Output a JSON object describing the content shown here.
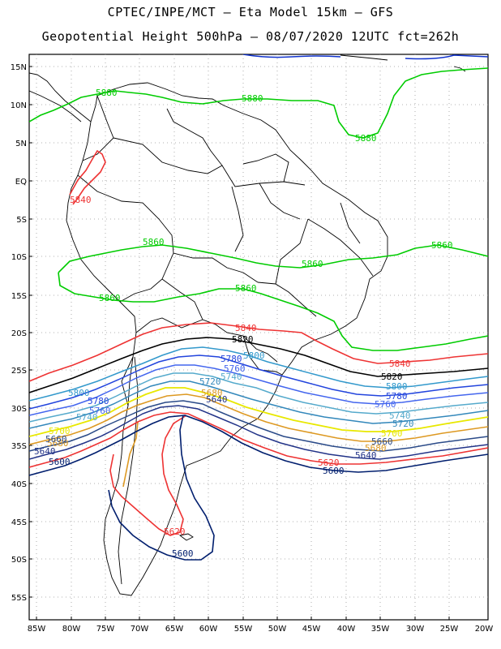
{
  "header": {
    "line1": "CPTEC/INPE/MCT –  Eta Model 15km – GFS",
    "line2": "Geopotential Height 500hPa – 08/07/2020 12UTC fct=262h"
  },
  "axes": {
    "lat_labels": [
      "15N",
      "10N",
      "5N",
      "EQ",
      "5S",
      "10S",
      "15S",
      "20S",
      "25S",
      "30S",
      "35S",
      "40S",
      "45S",
      "50S",
      "55S"
    ],
    "lon_labels": [
      "85W",
      "80W",
      "75W",
      "70W",
      "65W",
      "60W",
      "55W",
      "50W",
      "45W",
      "40W",
      "35W",
      "30W",
      "25W",
      "20W"
    ]
  },
  "colors": {
    "c5880": "#00cc00",
    "c5860": "#00cc00",
    "c5840": "#ee3333",
    "c5820": "#000000",
    "c5800": "#3399cc",
    "c5780": "#2244dd",
    "c5760": "#4466ee",
    "c5740": "#55aacc",
    "c5720": "#3388bb",
    "c5700": "#e8e800",
    "c5680": "#dd9922",
    "c5640": "#223388",
    "c5620": "#ee3333",
    "c5600": "#001e6e",
    "top": "#1133cc"
  },
  "contour_labels": {
    "l5880a": "5880",
    "l5880b": "5880",
    "l5880c": "5880",
    "l5840a": "5840",
    "l5860a": "5860",
    "l5860b": "5860",
    "l5860c": "5860",
    "l5860d": "5860",
    "l5860e": "5860",
    "l5840b": "5840",
    "l5840c": "5840",
    "l5820a": "5820",
    "l5820b": "5820",
    "l5800a": "5800",
    "l5800b": "5800",
    "l5800c": "5800",
    "l5780a": "5780",
    "l5780b": "5780",
    "l5780c": "5780",
    "l5760a": "5760",
    "l5760b": "5760",
    "l5760c": "5760",
    "l5740a": "5740",
    "l5740b": "5740",
    "l5740c": "5740",
    "l5720a": "5720",
    "l5720b": "5720",
    "l5700a": "5700",
    "l5700b": "5700",
    "l5680a": "5680",
    "l5680b": "5680",
    "l5680c": "5680",
    "l5660a": "5660",
    "l5660b": "5660",
    "l5640a": "5640",
    "l5640b": "5640",
    "l5640c": "5640",
    "l5620a": "5620",
    "l5620b": "5620",
    "l5600a": "5600",
    "l5600b": "5600",
    "l5600c": "5600"
  }
}
